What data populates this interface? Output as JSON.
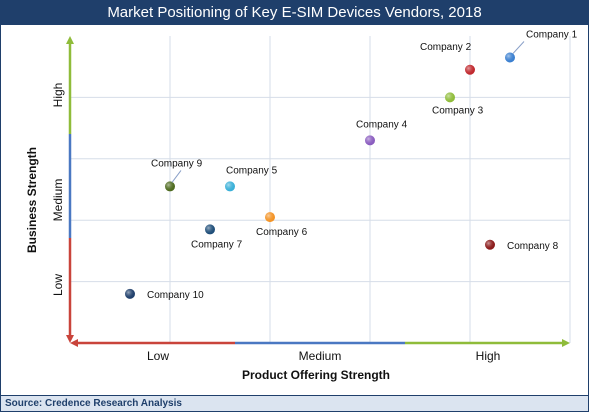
{
  "chart_data": {
    "type": "scatter",
    "title": "Market Positioning of Key E-SIM Devices Vendors, 2018",
    "xlabel": "Product Offering Strength",
    "ylabel": "Business Strength",
    "x_categories": [
      "Low",
      "Medium",
      "High"
    ],
    "y_categories": [
      "Low",
      "Medium",
      "High"
    ],
    "xlim": [
      0,
      10
    ],
    "ylim": [
      0,
      10
    ],
    "grid": true,
    "points": [
      {
        "label": "Company 1",
        "x": 8.8,
        "y": 9.3,
        "color": "#3a7fd0"
      },
      {
        "label": "Company 2",
        "x": 8.0,
        "y": 8.9,
        "color": "#c0282d"
      },
      {
        "label": "Company 3",
        "x": 7.6,
        "y": 8.0,
        "color": "#8fbc3a"
      },
      {
        "label": "Company 4",
        "x": 6.0,
        "y": 6.6,
        "color": "#8a5cbf"
      },
      {
        "label": "Company 5",
        "x": 3.2,
        "y": 5.1,
        "color": "#3ab0d8"
      },
      {
        "label": "Company 6",
        "x": 4.0,
        "y": 4.1,
        "color": "#f39325"
      },
      {
        "label": "Company 7",
        "x": 2.8,
        "y": 3.7,
        "color": "#1f4e79"
      },
      {
        "label": "Company 8",
        "x": 8.4,
        "y": 3.2,
        "color": "#8b1a1a"
      },
      {
        "label": "Company 9",
        "x": 2.0,
        "y": 5.1,
        "color": "#4e6b1f"
      },
      {
        "label": "Company 10",
        "x": 1.2,
        "y": 1.6,
        "color": "#1f3f6b"
      }
    ]
  },
  "source": "Source: Credence Research Analysis"
}
